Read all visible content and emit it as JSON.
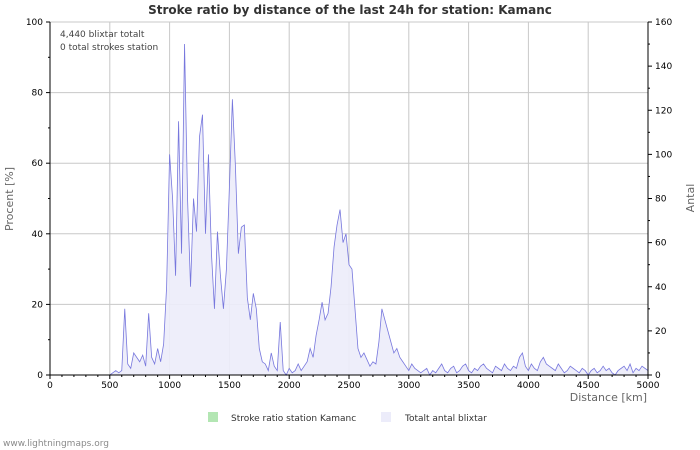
{
  "chart_data": {
    "type": "area",
    "title": "Stroke ratio by distance of the last 24h for station: Kamanc",
    "annotations": [
      "4,440 blixtar totalt",
      "0 total strokes station"
    ],
    "xlabel": "Distance   [km]",
    "ylabel_left": "Procent   [%]",
    "ylabel_right": "Antal",
    "xlim": [
      0,
      5000
    ],
    "ylim_left": [
      0,
      100
    ],
    "ylim_right": [
      0,
      160
    ],
    "x_ticks": [
      "0",
      "500",
      "1000",
      "1500",
      "2000",
      "2500",
      "3000",
      "3500",
      "4000",
      "4500",
      "5000"
    ],
    "y_ticks_left": [
      "0",
      "20",
      "40",
      "60",
      "80",
      "100"
    ],
    "y_ticks_right": [
      "0",
      "20",
      "40",
      "60",
      "80",
      "100",
      "120",
      "140",
      "160"
    ],
    "grid": true,
    "legend": {
      "placement": "bottom",
      "items": [
        {
          "label": "Stroke ratio station Kamanc",
          "color": "#b3e6b3"
        },
        {
          "label": "Totalt antal blixtar",
          "color": "#ececfa"
        }
      ]
    },
    "x": [
      0,
      25,
      50,
      75,
      100,
      125,
      150,
      175,
      200,
      225,
      250,
      275,
      300,
      325,
      350,
      375,
      400,
      425,
      450,
      475,
      500,
      525,
      550,
      575,
      600,
      625,
      650,
      675,
      700,
      725,
      750,
      775,
      800,
      825,
      850,
      875,
      900,
      925,
      950,
      975,
      1000,
      1025,
      1050,
      1075,
      1100,
      1125,
      1150,
      1175,
      1200,
      1225,
      1250,
      1275,
      1300,
      1325,
      1350,
      1375,
      1400,
      1425,
      1450,
      1475,
      1500,
      1525,
      1550,
      1575,
      1600,
      1625,
      1650,
      1675,
      1700,
      1725,
      1750,
      1775,
      1800,
      1825,
      1850,
      1875,
      1900,
      1925,
      1950,
      1975,
      2000,
      2025,
      2050,
      2075,
      2100,
      2125,
      2150,
      2175,
      2200,
      2225,
      2250,
      2275,
      2300,
      2325,
      2350,
      2375,
      2400,
      2425,
      2450,
      2475,
      2500,
      2525,
      2550,
      2575,
      2600,
      2625,
      2650,
      2675,
      2700,
      2725,
      2750,
      2775,
      2800,
      2825,
      2850,
      2875,
      2900,
      2925,
      2950,
      2975,
      3000,
      3025,
      3050,
      3075,
      3100,
      3125,
      3150,
      3175,
      3200,
      3225,
      3250,
      3275,
      3300,
      3325,
      3350,
      3375,
      3400,
      3425,
      3450,
      3475,
      3500,
      3525,
      3550,
      3575,
      3600,
      3625,
      3650,
      3675,
      3700,
      3725,
      3750,
      3775,
      3800,
      3825,
      3850,
      3875,
      3900,
      3925,
      3950,
      3975,
      4000,
      4025,
      4050,
      4075,
      4100,
      4125,
      4150,
      4175,
      4200,
      4225,
      4250,
      4275,
      4300,
      4325,
      4350,
      4375,
      4400,
      4425,
      4450,
      4475,
      4500,
      4525,
      4550,
      4575,
      4600,
      4625,
      4650,
      4675,
      4700,
      4725,
      4750,
      4775,
      4800,
      4825,
      4850,
      4875,
      4900,
      4925,
      4950,
      4975,
      5000
    ],
    "series": [
      {
        "name": "Totalt antal blixtar",
        "axis": "right",
        "values": [
          0,
          0,
          0,
          0,
          0,
          0,
          0,
          0,
          0,
          0,
          0,
          0,
          0,
          0,
          0,
          0,
          0,
          0,
          0,
          0,
          0,
          1,
          2,
          1,
          2,
          30,
          5,
          3,
          10,
          8,
          6,
          9,
          4,
          28,
          8,
          5,
          12,
          6,
          14,
          40,
          100,
          80,
          45,
          115,
          55,
          150,
          80,
          40,
          80,
          65,
          108,
          118,
          64,
          100,
          55,
          30,
          65,
          45,
          30,
          48,
          85,
          125,
          95,
          55,
          67,
          68,
          35,
          25,
          37,
          30,
          12,
          6,
          5,
          2,
          10,
          4,
          2,
          24,
          2,
          0,
          3,
          1,
          2,
          5,
          2,
          4,
          6,
          12,
          8,
          18,
          25,
          33,
          25,
          28,
          40,
          58,
          68,
          75,
          60,
          64,
          50,
          48,
          30,
          12,
          8,
          10,
          7,
          4,
          6,
          5,
          15,
          30,
          25,
          20,
          15,
          10,
          12,
          8,
          6,
          4,
          2,
          5,
          3,
          2,
          1,
          2,
          3,
          0,
          2,
          1,
          3,
          5,
          2,
          1,
          3,
          4,
          1,
          2,
          4,
          5,
          2,
          1,
          3,
          2,
          4,
          5,
          3,
          2,
          1,
          4,
          3,
          2,
          5,
          3,
          2,
          4,
          3,
          8,
          10,
          4,
          2,
          5,
          3,
          2,
          6,
          8,
          5,
          4,
          3,
          2,
          5,
          3,
          1,
          2,
          4,
          3,
          2,
          1,
          3,
          2,
          0,
          2,
          3,
          1,
          2,
          4,
          2,
          3,
          1,
          0,
          2,
          3,
          4,
          2,
          5,
          1,
          3,
          2,
          4,
          3,
          2
        ],
        "color": "#7777dd",
        "fill": "#ececfa"
      },
      {
        "name": "Stroke ratio station Kamanc",
        "axis": "left",
        "values": [
          0,
          0,
          0,
          0,
          0,
          0,
          0,
          0,
          0,
          0,
          0,
          0,
          0,
          0,
          0,
          0,
          0,
          0,
          0,
          0,
          0,
          0,
          0,
          0,
          0,
          0,
          0,
          0,
          0,
          0,
          0,
          0,
          0,
          0,
          0,
          0,
          0,
          0,
          0,
          0,
          0,
          0,
          0,
          0,
          0,
          0,
          0,
          0,
          0,
          0,
          0,
          0,
          0,
          0,
          0,
          0,
          0,
          0,
          0,
          0,
          0,
          0,
          0,
          0,
          0,
          0,
          0,
          0,
          0,
          0,
          0,
          0,
          0,
          0,
          0,
          0,
          0,
          0,
          0,
          0,
          0,
          0,
          0,
          0,
          0,
          0,
          0,
          0,
          0,
          0,
          0,
          0,
          0,
          0,
          0,
          0,
          0,
          0,
          0,
          0,
          0,
          0,
          0,
          0,
          0,
          0,
          0,
          0,
          0,
          0,
          0,
          0,
          0,
          0,
          0,
          0,
          0,
          0,
          0,
          0,
          0,
          0,
          0,
          0,
          0,
          0,
          0,
          0,
          0,
          0,
          0,
          0,
          0,
          0,
          0,
          0,
          0,
          0,
          0,
          0,
          0,
          0,
          0,
          0,
          0,
          0,
          0,
          0,
          0,
          0,
          0,
          0,
          0,
          0,
          0,
          0,
          0,
          0,
          0,
          0,
          0,
          0,
          0,
          0,
          0,
          0,
          0,
          0,
          0,
          0,
          0,
          0,
          0,
          0,
          0,
          0,
          0,
          0,
          0,
          0,
          0,
          0,
          0,
          0,
          0,
          0,
          0,
          0,
          0,
          0,
          0,
          0,
          0,
          0,
          0,
          0,
          0,
          0,
          0,
          0,
          0
        ],
        "color": "#33aa33"
      }
    ]
  },
  "footer": "www.lightningmaps.org"
}
